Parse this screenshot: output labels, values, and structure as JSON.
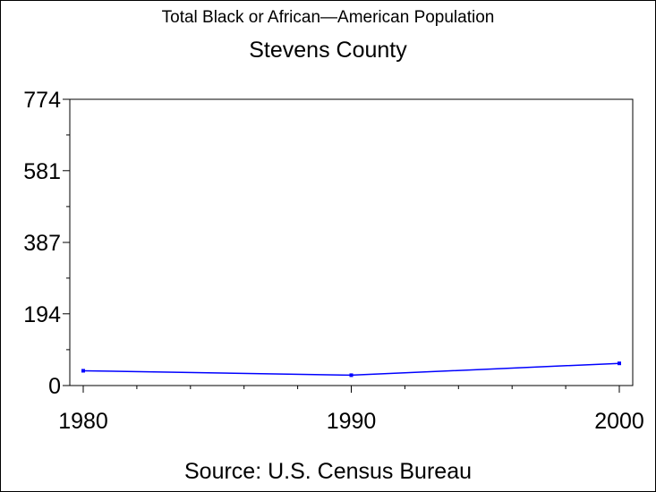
{
  "title": "Total Black or African—American Population",
  "subtitle": "Stevens County",
  "source": "Source: U.S. Census Bureau",
  "chart_data": {
    "type": "line",
    "title": "Total Black or African—American Population",
    "subtitle": "Stevens County",
    "xlabel": "",
    "ylabel": "",
    "x": [
      1980,
      1990,
      2000
    ],
    "series": [
      {
        "values": [
          40,
          28,
          60
        ],
        "color": "#0000ff"
      }
    ],
    "xlim": [
      1980,
      2000
    ],
    "ylim": [
      0,
      774
    ],
    "y_ticks": [
      0,
      194,
      387,
      581,
      774
    ],
    "y_tick_labels": [
      "0",
      "194",
      "387",
      "581",
      "774"
    ],
    "x_ticks": [
      1980,
      1990,
      2000
    ],
    "x_tick_labels": [
      "1980",
      "1990",
      "2000"
    ],
    "grid": false,
    "legend": "none"
  }
}
